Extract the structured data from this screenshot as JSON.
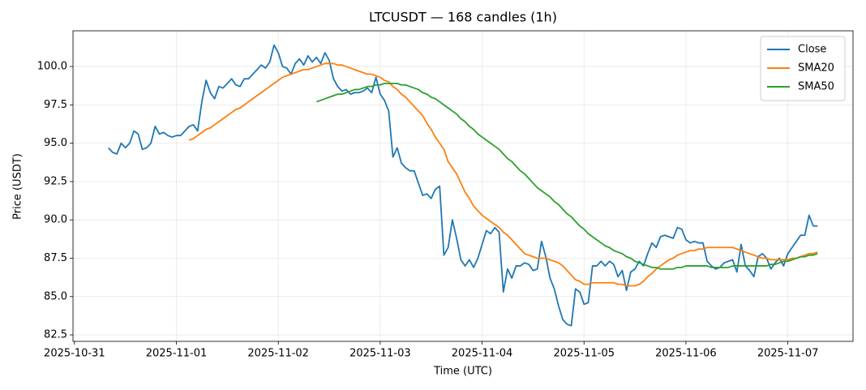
{
  "chart_data": {
    "type": "line",
    "title": "LTCUSDT — 168 candles (1h)",
    "x_label": "Time (UTC)",
    "y_label": "Price (USDT)",
    "grid": true,
    "legend": "upper right",
    "xlim": [
      "2025-10-30 23:39",
      "2025-11-07 15:21"
    ],
    "xticks": [
      "2025-10-31",
      "2025-11-01",
      "2025-11-02",
      "2025-11-03",
      "2025-11-04",
      "2025-11-05",
      "2025-11-06",
      "2025-11-07"
    ],
    "ylim": [
      82.08,
      102.33
    ],
    "yticks": [
      82.5,
      {
        "value": 85,
        "label": "85.0"
      },
      87.5,
      {
        "value": 90,
        "label": "90.0"
      },
      92.5,
      {
        "value": 95,
        "label": "95.0"
      },
      97.5,
      {
        "value": 100,
        "label": "100.0"
      }
    ],
    "x": [
      "2025-10-31 08:00",
      "2025-10-31 09:00",
      "2025-10-31 10:00",
      "2025-10-31 11:00",
      "2025-10-31 12:00",
      "2025-10-31 13:00",
      "2025-10-31 14:00",
      "2025-10-31 15:00",
      "2025-10-31 16:00",
      "2025-10-31 17:00",
      "2025-10-31 18:00",
      "2025-10-31 19:00",
      "2025-10-31 20:00",
      "2025-10-31 21:00",
      "2025-10-31 22:00",
      "2025-10-31 23:00",
      "2025-11-01 00:00",
      "2025-11-01 01:00",
      "2025-11-01 02:00",
      "2025-11-01 03:00",
      "2025-11-01 04:00",
      "2025-11-01 05:00",
      "2025-11-01 06:00",
      "2025-11-01 07:00",
      "2025-11-01 08:00",
      "2025-11-01 09:00",
      "2025-11-01 10:00",
      "2025-11-01 11:00",
      "2025-11-01 12:00",
      "2025-11-01 13:00",
      "2025-11-01 14:00",
      "2025-11-01 15:00",
      "2025-11-01 16:00",
      "2025-11-01 17:00",
      "2025-11-01 18:00",
      "2025-11-01 19:00",
      "2025-11-01 20:00",
      "2025-11-01 21:00",
      "2025-11-01 22:00",
      "2025-11-01 23:00",
      "2025-11-02 00:00",
      "2025-11-02 01:00",
      "2025-11-02 02:00",
      "2025-11-02 03:00",
      "2025-11-02 04:00",
      "2025-11-02 05:00",
      "2025-11-02 06:00",
      "2025-11-02 07:00",
      "2025-11-02 08:00",
      "2025-11-02 09:00",
      "2025-11-02 10:00",
      "2025-11-02 11:00",
      "2025-11-02 12:00",
      "2025-11-02 13:00",
      "2025-11-02 14:00",
      "2025-11-02 15:00",
      "2025-11-02 16:00",
      "2025-11-02 17:00",
      "2025-11-02 18:00",
      "2025-11-02 19:00",
      "2025-11-02 20:00",
      "2025-11-02 21:00",
      "2025-11-02 22:00",
      "2025-11-02 23:00",
      "2025-11-03 00:00",
      "2025-11-03 01:00",
      "2025-11-03 02:00",
      "2025-11-03 03:00",
      "2025-11-03 04:00",
      "2025-11-03 05:00",
      "2025-11-03 06:00",
      "2025-11-03 07:00",
      "2025-11-03 08:00",
      "2025-11-03 09:00",
      "2025-11-03 10:00",
      "2025-11-03 11:00",
      "2025-11-03 12:00",
      "2025-11-03 13:00",
      "2025-11-03 14:00",
      "2025-11-03 15:00",
      "2025-11-03 16:00",
      "2025-11-03 17:00",
      "2025-11-03 18:00",
      "2025-11-03 19:00",
      "2025-11-03 20:00",
      "2025-11-03 21:00",
      "2025-11-03 22:00",
      "2025-11-03 23:00",
      "2025-11-04 00:00",
      "2025-11-04 01:00",
      "2025-11-04 02:00",
      "2025-11-04 03:00",
      "2025-11-04 04:00",
      "2025-11-04 05:00",
      "2025-11-04 06:00",
      "2025-11-04 07:00",
      "2025-11-04 08:00",
      "2025-11-04 09:00",
      "2025-11-04 10:00",
      "2025-11-04 11:00",
      "2025-11-04 12:00",
      "2025-11-04 13:00",
      "2025-11-04 14:00",
      "2025-11-04 15:00",
      "2025-11-04 16:00",
      "2025-11-04 17:00",
      "2025-11-04 18:00",
      "2025-11-04 19:00",
      "2025-11-04 20:00",
      "2025-11-04 21:00",
      "2025-11-04 22:00",
      "2025-11-04 23:00",
      "2025-11-05 00:00",
      "2025-11-05 01:00",
      "2025-11-05 02:00",
      "2025-11-05 03:00",
      "2025-11-05 04:00",
      "2025-11-05 05:00",
      "2025-11-05 06:00",
      "2025-11-05 07:00",
      "2025-11-05 08:00",
      "2025-11-05 09:00",
      "2025-11-05 10:00",
      "2025-11-05 11:00",
      "2025-11-05 12:00",
      "2025-11-05 13:00",
      "2025-11-05 14:00",
      "2025-11-05 15:00",
      "2025-11-05 16:00",
      "2025-11-05 17:00",
      "2025-11-05 18:00",
      "2025-11-05 19:00",
      "2025-11-05 20:00",
      "2025-11-05 21:00",
      "2025-11-05 22:00",
      "2025-11-05 23:00",
      "2025-11-06 00:00",
      "2025-11-06 01:00",
      "2025-11-06 02:00",
      "2025-11-06 03:00",
      "2025-11-06 04:00",
      "2025-11-06 05:00",
      "2025-11-06 06:00",
      "2025-11-06 07:00",
      "2025-11-06 08:00",
      "2025-11-06 09:00",
      "2025-11-06 10:00",
      "2025-11-06 11:00",
      "2025-11-06 12:00",
      "2025-11-06 13:00",
      "2025-11-06 14:00",
      "2025-11-06 15:00",
      "2025-11-06 16:00",
      "2025-11-06 17:00",
      "2025-11-06 18:00",
      "2025-11-06 19:00",
      "2025-11-06 20:00",
      "2025-11-06 21:00",
      "2025-11-06 22:00",
      "2025-11-06 23:00",
      "2025-11-07 00:00",
      "2025-11-07 01:00",
      "2025-11-07 02:00",
      "2025-11-07 03:00",
      "2025-11-07 04:00",
      "2025-11-07 05:00",
      "2025-11-07 06:00",
      "2025-11-07 07:00"
    ],
    "series": [
      {
        "name": "Close",
        "color": "#1f77b4",
        "values": [
          94.7,
          94.4,
          94.3,
          95.0,
          94.7,
          95.0,
          95.8,
          95.6,
          94.6,
          94.7,
          95.0,
          96.1,
          95.6,
          95.7,
          95.5,
          95.4,
          95.5,
          95.5,
          95.8,
          96.1,
          96.2,
          95.8,
          97.7,
          99.1,
          98.3,
          97.9,
          98.7,
          98.6,
          98.9,
          99.2,
          98.8,
          98.7,
          99.2,
          99.2,
          99.5,
          99.8,
          100.1,
          99.9,
          100.3,
          101.4,
          100.9,
          100.0,
          99.9,
          99.5,
          100.2,
          100.5,
          100.1,
          100.7,
          100.3,
          100.6,
          100.2,
          100.9,
          100.4,
          99.2,
          98.7,
          98.4,
          98.5,
          98.2,
          98.3,
          98.3,
          98.4,
          98.6,
          98.3,
          99.3,
          98.2,
          97.8,
          97.1,
          94.1,
          94.7,
          93.7,
          93.4,
          93.2,
          93.2,
          92.4,
          91.6,
          91.7,
          91.4,
          92.0,
          92.2,
          87.7,
          88.2,
          90.0,
          88.8,
          87.4,
          87.0,
          87.4,
          86.9,
          87.5,
          88.4,
          89.3,
          89.1,
          89.5,
          89.2,
          85.3,
          86.8,
          86.2,
          87.0,
          87.0,
          87.2,
          87.1,
          86.7,
          86.8,
          88.6,
          87.6,
          86.2,
          85.5,
          84.4,
          83.5,
          83.2,
          83.1,
          85.5,
          85.3,
          84.5,
          84.6,
          87.0,
          87.0,
          87.3,
          87.0,
          87.3,
          87.1,
          86.3,
          86.7,
          85.4,
          86.6,
          86.8,
          87.3,
          87.0,
          87.8,
          88.5,
          88.2,
          88.9,
          89.0,
          88.9,
          88.8,
          89.5,
          89.4,
          88.7,
          88.5,
          88.6,
          88.5,
          88.5,
          87.3,
          87.0,
          86.8,
          86.9,
          87.2,
          87.3,
          87.4,
          86.6,
          88.4,
          87.0,
          86.7,
          86.3,
          87.6,
          87.8,
          87.5,
          86.8,
          87.2,
          87.5,
          87.0,
          87.8,
          88.2,
          88.6,
          89.0,
          89.0,
          90.3,
          89.6,
          89.6
        ]
      },
      {
        "name": "SMA20",
        "color": "#ff7f0e",
        "values": [
          null,
          null,
          null,
          null,
          null,
          null,
          null,
          null,
          null,
          null,
          null,
          null,
          null,
          null,
          null,
          null,
          null,
          null,
          null,
          95.2,
          95.3,
          95.5,
          95.7,
          95.9,
          96.0,
          96.2,
          96.4,
          96.6,
          96.8,
          97.0,
          97.2,
          97.3,
          97.5,
          97.7,
          97.9,
          98.1,
          98.3,
          98.5,
          98.7,
          98.9,
          99.1,
          99.3,
          99.4,
          99.5,
          99.6,
          99.7,
          99.8,
          99.8,
          99.9,
          100.0,
          100.1,
          100.2,
          100.2,
          100.2,
          100.1,
          100.1,
          100.0,
          99.9,
          99.8,
          99.7,
          99.6,
          99.5,
          99.5,
          99.4,
          99.3,
          99.1,
          99.0,
          98.7,
          98.5,
          98.2,
          98.0,
          97.7,
          97.4,
          97.1,
          96.8,
          96.3,
          95.9,
          95.4,
          95.0,
          94.6,
          93.8,
          93.4,
          93.0,
          92.4,
          91.8,
          91.4,
          90.9,
          90.6,
          90.3,
          90.1,
          89.9,
          89.7,
          89.5,
          89.2,
          89.0,
          88.7,
          88.4,
          88.1,
          87.8,
          87.7,
          87.6,
          87.5,
          87.5,
          87.5,
          87.4,
          87.3,
          87.2,
          87.0,
          86.7,
          86.4,
          86.1,
          86.0,
          85.8,
          85.8,
          85.9,
          85.9,
          85.9,
          85.9,
          85.9,
          85.9,
          85.8,
          85.8,
          85.7,
          85.7,
          85.7,
          85.8,
          86.0,
          86.3,
          86.5,
          86.8,
          87.0,
          87.2,
          87.4,
          87.5,
          87.7,
          87.8,
          87.9,
          88.0,
          88.0,
          88.1,
          88.1,
          88.2,
          88.2,
          88.2,
          88.2,
          88.2,
          88.2,
          88.2,
          88.1,
          88.0,
          87.9,
          87.8,
          87.7,
          87.6,
          87.5,
          87.5,
          87.4,
          87.4,
          87.4,
          87.4,
          87.4,
          87.5,
          87.5,
          87.6,
          87.7,
          87.8,
          87.8,
          87.9
        ]
      },
      {
        "name": "SMA50",
        "color": "#2ca02c",
        "values": [
          null,
          null,
          null,
          null,
          null,
          null,
          null,
          null,
          null,
          null,
          null,
          null,
          null,
          null,
          null,
          null,
          null,
          null,
          null,
          null,
          null,
          null,
          null,
          null,
          null,
          null,
          null,
          null,
          null,
          null,
          null,
          null,
          null,
          null,
          null,
          null,
          null,
          null,
          null,
          null,
          null,
          null,
          null,
          null,
          null,
          null,
          null,
          null,
          null,
          97.7,
          97.8,
          97.9,
          98.0,
          98.1,
          98.2,
          98.2,
          98.3,
          98.4,
          98.5,
          98.5,
          98.6,
          98.7,
          98.7,
          98.8,
          98.8,
          98.9,
          98.9,
          98.9,
          98.9,
          98.8,
          98.8,
          98.7,
          98.6,
          98.5,
          98.3,
          98.2,
          98.0,
          97.9,
          97.7,
          97.5,
          97.3,
          97.1,
          96.9,
          96.6,
          96.4,
          96.1,
          95.9,
          95.6,
          95.4,
          95.2,
          95.0,
          94.8,
          94.6,
          94.3,
          94.0,
          93.8,
          93.5,
          93.2,
          93.0,
          92.7,
          92.4,
          92.1,
          91.9,
          91.7,
          91.5,
          91.2,
          91.0,
          90.7,
          90.4,
          90.2,
          89.9,
          89.6,
          89.4,
          89.1,
          88.9,
          88.7,
          88.5,
          88.3,
          88.2,
          88.0,
          87.9,
          87.8,
          87.6,
          87.5,
          87.3,
          87.2,
          87.1,
          87.0,
          86.9,
          86.9,
          86.8,
          86.8,
          86.8,
          86.8,
          86.9,
          86.9,
          87.0,
          87.0,
          87.0,
          87.0,
          87.0,
          87.0,
          86.9,
          86.9,
          86.9,
          86.9,
          86.9,
          87.0,
          87.0,
          87.0,
          87.0,
          87.0,
          87.0,
          87.0,
          87.0,
          87.0,
          87.1,
          87.1,
          87.2,
          87.3,
          87.3,
          87.4,
          87.5,
          87.6,
          87.6,
          87.7,
          87.7,
          87.8
        ]
      }
    ]
  }
}
